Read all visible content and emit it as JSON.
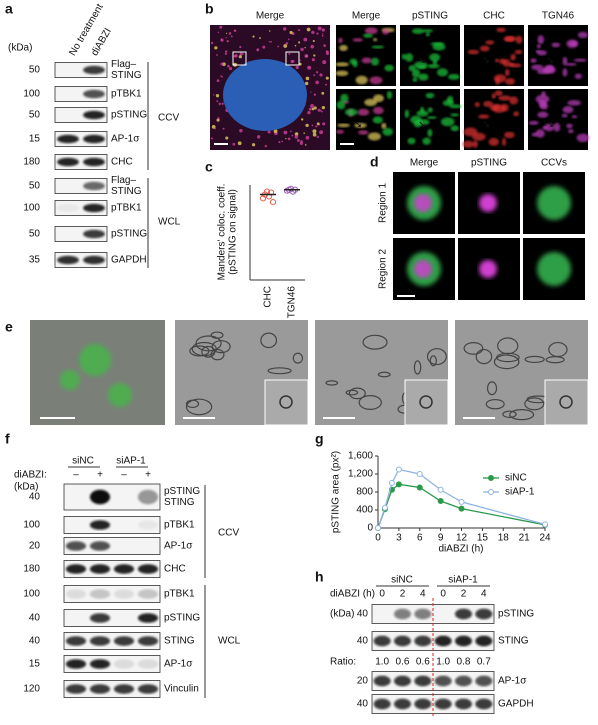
{
  "panel_a": {
    "letter": "a",
    "kda": "(kDa)",
    "lanes": [
      "No treatment",
      "diABZI"
    ],
    "rows": [
      {
        "mw": "50",
        "label": [
          "Flag–",
          "STING"
        ]
      },
      {
        "mw": "100",
        "label": [
          "pTBK1"
        ]
      },
      {
        "mw": "50",
        "label": [
          "pSTING"
        ]
      },
      {
        "mw": "15",
        "label": [
          "AP-1σ"
        ]
      },
      {
        "mw": "180",
        "label": [
          "CHC"
        ]
      },
      {
        "mw": "50",
        "label": [
          "Flag–",
          "STING"
        ]
      },
      {
        "mw": "100",
        "label": [
          "pTBK1"
        ]
      },
      {
        "mw": "50",
        "label": [
          "pSTING"
        ]
      },
      {
        "mw": "35",
        "label": [
          "GAPDH"
        ]
      }
    ],
    "groups": [
      "CCV",
      "WCL"
    ]
  },
  "panel_b": {
    "letter": "b",
    "big_title": "Merge",
    "columns": [
      "Merge",
      "pSTING",
      "CHC",
      "TGN46"
    ]
  },
  "panel_d": {
    "letter": "d",
    "columns": [
      "Merge",
      "pSTING",
      "CCVs"
    ],
    "rows": [
      "Region 1",
      "Region 2"
    ]
  },
  "panel_e": {
    "letter": "e"
  },
  "panel_f": {
    "letter": "f",
    "groups": [
      "siNC",
      "siAP-1"
    ],
    "treatment": "diABZI:",
    "signs": [
      "–",
      "+",
      "–",
      "+"
    ],
    "kda": "(kDa)",
    "rows": [
      {
        "mw": "40",
        "label": [
          "pSTING",
          "STING"
        ]
      },
      {
        "mw": "100",
        "label": [
          "pTBK1"
        ]
      },
      {
        "mw": "20",
        "label": [
          "AP-1σ"
        ]
      },
      {
        "mw": "180",
        "label": [
          "CHC"
        ]
      },
      {
        "mw": "100",
        "label": [
          "pTBK1"
        ]
      },
      {
        "mw": "40",
        "label": [
          "pSTING"
        ]
      },
      {
        "mw": "40",
        "label": [
          "STING"
        ]
      },
      {
        "mw": "15",
        "label": [
          "AP-1σ"
        ]
      },
      {
        "mw": "120",
        "label": [
          "Vinculin"
        ]
      }
    ],
    "brackets": [
      "CCV",
      "WCL"
    ]
  },
  "panel_h": {
    "letter": "h",
    "treatment": "diABZI (h)",
    "groups": [
      "siNC",
      "siAP-1"
    ],
    "times": [
      "0",
      "2",
      "4",
      "0",
      "2",
      "4"
    ],
    "kda": "(kDa)",
    "rows": [
      {
        "mw": "40",
        "label": "pSTING"
      },
      {
        "mw": "40",
        "label": "STING"
      },
      {
        "mw": "20",
        "label": "AP-1σ"
      },
      {
        "mw": "40",
        "label": "GAPDH"
      }
    ],
    "ratio_label": "Ratio:",
    "ratios": [
      "1.0",
      "0.6",
      "0.6",
      "1.0",
      "0.8",
      "0.7"
    ]
  },
  "chart_data": [
    {
      "type": "dot",
      "letter": "c",
      "ylabel": [
        "Manders' coloc. coeff.",
        "(pSTING on signal)"
      ],
      "categories": [
        "CHC",
        "TGN46"
      ],
      "values": [
        0.9,
        0.95
      ],
      "points": [
        [
          0.86,
          0.9,
          0.93,
          0.88,
          0.92,
          0.82
        ],
        [
          0.94,
          0.95,
          0.96,
          0.93,
          0.95
        ]
      ],
      "colors": [
        "#e8604c",
        "#9a5fb0"
      ],
      "ylim": [
        0,
        1
      ]
    },
    {
      "type": "line",
      "letter": "g",
      "ylabel": "pSTING area (px²)",
      "xlabel": "diABZI (h)",
      "x": [
        0,
        1,
        2,
        3,
        6,
        9,
        12,
        24
      ],
      "series": [
        {
          "name": "siNC",
          "color": "#2a9a4a",
          "values": [
            0,
            420,
            850,
            970,
            900,
            600,
            430,
            70
          ]
        },
        {
          "name": "siAP-1",
          "color": "#8fb4e0",
          "values": [
            0,
            450,
            1000,
            1300,
            1200,
            850,
            580,
            80
          ]
        }
      ],
      "xlim": [
        0,
        24
      ],
      "ylim": [
        0,
        1600
      ],
      "xticks": [
        0,
        3,
        6,
        9,
        12,
        15,
        18,
        21,
        24
      ],
      "yticks": [
        0,
        400,
        800,
        {
          "value": 1200,
          "label": "1,200"
        },
        {
          "value": 1600,
          "label": "1,600"
        }
      ],
      "legend": "upper right"
    }
  ]
}
